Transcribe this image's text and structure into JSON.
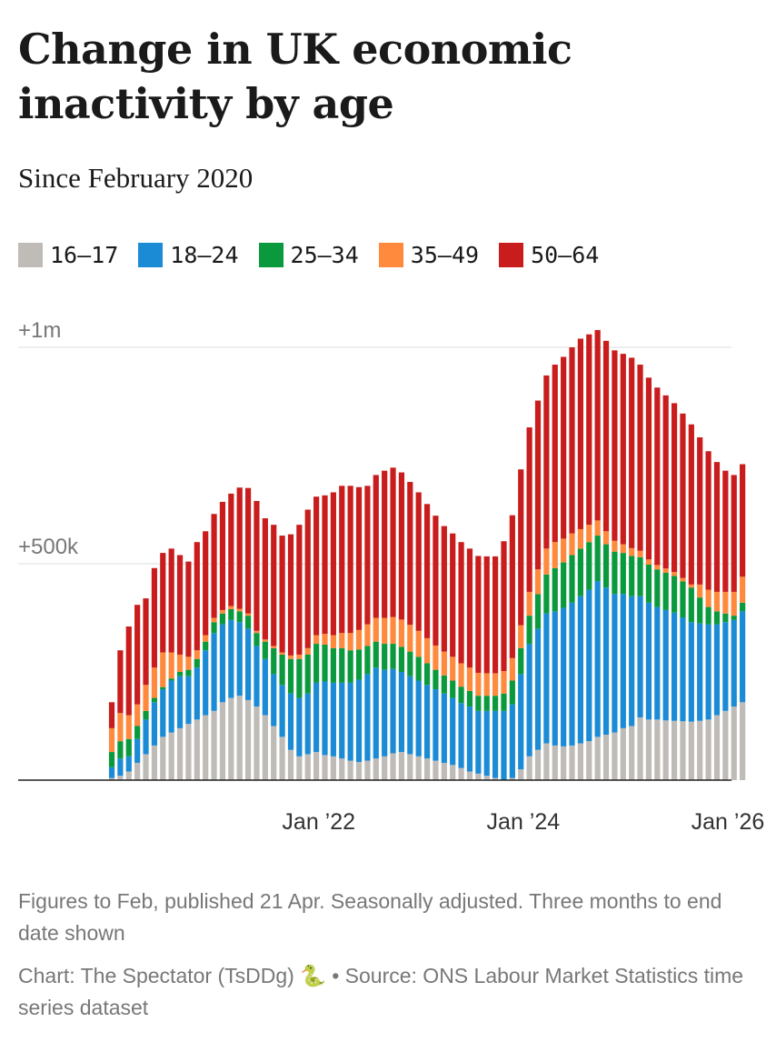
{
  "chart_data": {
    "type": "bar",
    "stacked": true,
    "title": "Change in UK economic inactivity by age",
    "subtitle": "Since February 2020",
    "legend": [
      {
        "name": "16–17",
        "color": "#bfbbb7"
      },
      {
        "name": "18–24",
        "color": "#1b8bd6"
      },
      {
        "name": "25–34",
        "color": "#0a9a3d"
      },
      {
        "name": "35–49",
        "color": "#ff8a3d"
      },
      {
        "name": "50–64",
        "color": "#c91c1c"
      }
    ],
    "y_ticks": [
      {
        "value": 1000000,
        "label": "+1m"
      },
      {
        "value": 500000,
        "label": "+500k"
      }
    ],
    "ylim": [
      0,
      1000000
    ],
    "x_ticks": [
      {
        "index": 23,
        "label": "Jan ’22"
      },
      {
        "index": 47,
        "label": "Jan ’24"
      },
      {
        "index": 71,
        "label": "Jan ’26"
      }
    ],
    "series": [
      {
        "name": "16–17",
        "color": "#bfbbb7",
        "values": [
          5000,
          10000,
          20000,
          40000,
          60000,
          80000,
          100000,
          110000,
          120000,
          130000,
          140000,
          150000,
          160000,
          180000,
          190000,
          195000,
          185000,
          170000,
          150000,
          125000,
          100000,
          70000,
          55000,
          60000,
          65000,
          58000,
          55000,
          50000,
          45000,
          42000,
          45000,
          50000,
          55000,
          62000,
          65000,
          60000,
          55000,
          50000,
          45000,
          40000,
          35000,
          28000,
          20000,
          15000,
          10000,
          5000,
          0,
          5000,
          25000,
          55000,
          70000,
          85000,
          80000,
          78000,
          80000,
          85000,
          90000,
          100000,
          105000,
          110000,
          120000,
          125000,
          145000,
          140000,
          140000,
          138000,
          137000,
          136000,
          135000,
          137000,
          140000,
          150000,
          160000,
          170000,
          180000
        ]
      },
      {
        "name": "18–24",
        "color": "#1b8bd6",
        "values": [
          25000,
          40000,
          35000,
          55000,
          80000,
          100000,
          110000,
          120000,
          120000,
          110000,
          120000,
          150000,
          180000,
          180000,
          180000,
          170000,
          165000,
          140000,
          130000,
          120000,
          120000,
          130000,
          135000,
          140000,
          160000,
          170000,
          170000,
          175000,
          180000,
          190000,
          200000,
          210000,
          200000,
          195000,
          185000,
          180000,
          175000,
          170000,
          165000,
          160000,
          155000,
          150000,
          150000,
          145000,
          150000,
          155000,
          160000,
          170000,
          220000,
          260000,
          280000,
          300000,
          310000,
          320000,
          330000,
          340000,
          350000,
          360000,
          340000,
          320000,
          310000,
          300000,
          280000,
          270000,
          260000,
          255000,
          250000,
          240000,
          230000,
          225000,
          220000,
          210000,
          205000,
          200000,
          210000
        ]
      },
      {
        "name": "25–34",
        "color": "#0a9a3d",
        "values": [
          35000,
          40000,
          40000,
          30000,
          20000,
          10000,
          5000,
          5000,
          10000,
          15000,
          20000,
          20000,
          25000,
          25000,
          25000,
          25000,
          30000,
          30000,
          40000,
          60000,
          70000,
          80000,
          90000,
          90000,
          90000,
          85000,
          80000,
          80000,
          75000,
          70000,
          65000,
          60000,
          60000,
          58000,
          58000,
          57000,
          55000,
          50000,
          45000,
          42000,
          40000,
          38000,
          36000,
          35000,
          35000,
          35000,
          40000,
          55000,
          60000,
          65000,
          80000,
          90000,
          100000,
          105000,
          110000,
          110000,
          110000,
          105000,
          100000,
          98000,
          95000,
          93000,
          90000,
          88000,
          87000,
          86000,
          85000,
          83000,
          80000,
          60000,
          40000,
          30000,
          20000,
          10000,
          20000
        ]
      },
      {
        "name": "35–49",
        "color": "#ff8a3d",
        "values": [
          55000,
          65000,
          55000,
          50000,
          60000,
          70000,
          80000,
          60000,
          40000,
          30000,
          20000,
          15000,
          10000,
          8000,
          7000,
          6000,
          5000,
          5000,
          5000,
          5000,
          5000,
          8000,
          10000,
          15000,
          20000,
          25000,
          30000,
          35000,
          40000,
          45000,
          50000,
          55000,
          60000,
          62000,
          63000,
          62000,
          60000,
          58000,
          56000,
          55000,
          55000,
          54000,
          54000,
          53000,
          52000,
          52000,
          52000,
          52000,
          53000,
          55000,
          57000,
          60000,
          60000,
          55000,
          50000,
          45000,
          40000,
          35000,
          30000,
          25000,
          20000,
          18000,
          15000,
          12000,
          10000,
          10000,
          9000,
          8000,
          7000,
          30000,
          40000,
          45000,
          50000,
          55000,
          60000
        ]
      },
      {
        "name": "50–64",
        "color": "#c91c1c",
        "values": [
          60000,
          145000,
          205000,
          230000,
          200000,
          230000,
          230000,
          240000,
          230000,
          220000,
          250000,
          240000,
          240000,
          250000,
          260000,
          280000,
          290000,
          300000,
          280000,
          280000,
          270000,
          280000,
          300000,
          320000,
          320000,
          320000,
          330000,
          340000,
          340000,
          330000,
          320000,
          330000,
          340000,
          345000,
          340000,
          330000,
          320000,
          310000,
          300000,
          290000,
          285000,
          280000,
          275000,
          270000,
          270000,
          270000,
          300000,
          330000,
          360000,
          380000,
          390000,
          400000,
          410000,
          420000,
          430000,
          440000,
          440000,
          440000,
          440000,
          440000,
          440000,
          440000,
          430000,
          420000,
          410000,
          400000,
          390000,
          380000,
          370000,
          340000,
          320000,
          300000,
          280000,
          270000,
          260000
        ]
      }
    ]
  },
  "note": "Figures to Feb, published 21 Apr. Seasonally adjusted. Three months to end date shown",
  "credit": "Chart: The Spectator (TsDDg) 🐍 • Source: ONS Labour Market Statistics time series dataset"
}
